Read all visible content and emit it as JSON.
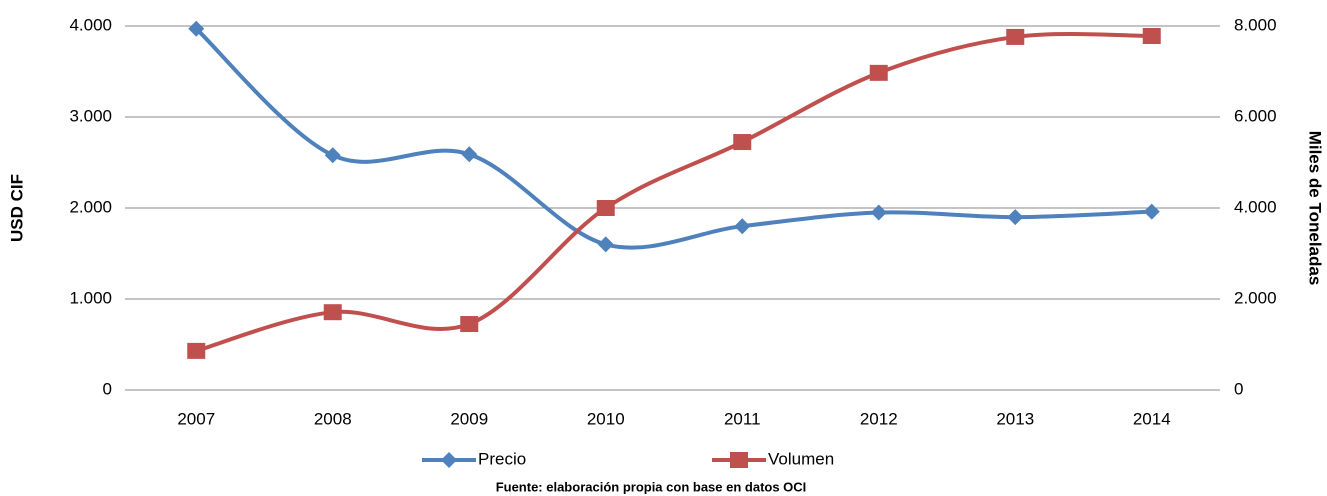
{
  "chart_data": {
    "type": "line",
    "categories": [
      "2007",
      "2008",
      "2009",
      "2010",
      "2011",
      "2012",
      "2013",
      "2014"
    ],
    "series": [
      {
        "name": "Precio",
        "color": "#4f81bd",
        "marker": "diamond",
        "values": [
          3970,
          2580,
          2590,
          1600,
          1800,
          1950,
          1900,
          1960
        ]
      },
      {
        "name": "Volumen",
        "color": "#c0504d",
        "marker": "square",
        "axis": "y2",
        "values": [
          860,
          1710,
          1450,
          4000,
          5450,
          6970,
          7760,
          7780
        ]
      }
    ],
    "ylabel": "USD CIF",
    "y2label": "Miles de Toneladas",
    "ylim": [
      0,
      4000
    ],
    "yticks": [
      0,
      {
        "value": 1000,
        "label": "1.000"
      },
      {
        "value": 2000,
        "label": "2.000"
      },
      {
        "value": 3000,
        "label": "3.000"
      },
      {
        "value": 4000,
        "label": "4.000"
      }
    ],
    "y2lim": [
      0,
      8000
    ],
    "y2ticks": [
      0,
      {
        "value": 2000,
        "label": "2.000"
      },
      {
        "value": 4000,
        "label": "4.000"
      },
      {
        "value": 6000,
        "label": "6.000"
      },
      {
        "value": 8000,
        "label": "8.000"
      }
    ],
    "grid": true,
    "smooth": true,
    "legend": "bottom",
    "source": "Fuente: elaboración propia con base en datos OCI"
  }
}
